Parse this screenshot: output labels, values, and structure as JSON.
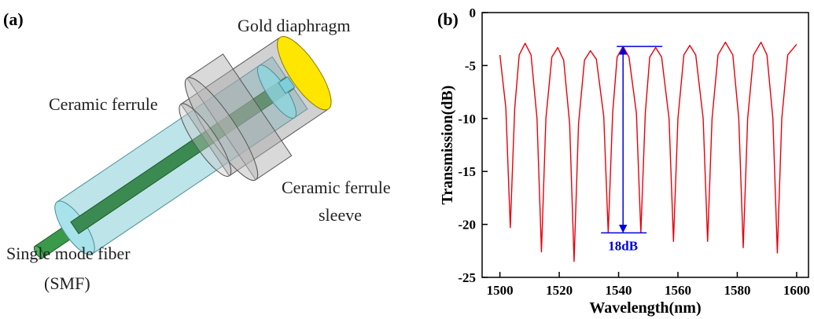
{
  "diagram": {
    "panel_label": "(a)",
    "labels": {
      "diaphragm": "Gold diaphragm",
      "ferrule": "Ceramic ferrule",
      "sleeve": [
        "Ceramic ferrule",
        "sleeve"
      ],
      "fiber": [
        "Single mode fiber",
        "(SMF)"
      ]
    }
  },
  "chart_data": {
    "type": "line",
    "panel_label": "(b)",
    "x_label": "Wavelength(nm)",
    "y_label": "Transmission(dB)",
    "x": [
      1500,
      1502,
      1503.5,
      1505,
      1506.5,
      1508.5,
      1510.5,
      1512.5,
      1514,
      1515.5,
      1517.5,
      1519.5,
      1521.5,
      1523.5,
      1525,
      1526.5,
      1528.5,
      1530.5,
      1532.5,
      1535,
      1536.5,
      1538,
      1539.5,
      1541.5,
      1543.5,
      1546,
      1547.5,
      1549,
      1550.5,
      1552.5,
      1554.5,
      1557,
      1558.5,
      1560,
      1562,
      1564,
      1566,
      1568.5,
      1570,
      1571.5,
      1573.5,
      1576,
      1578.5,
      1580.5,
      1582,
      1583.5,
      1585.5,
      1588,
      1590,
      1592,
      1593.5,
      1595,
      1597,
      1600
    ],
    "series": [
      {
        "color": "#e8000b",
        "values": [
          -4.0,
          -9,
          -20.3,
          -9,
          -4,
          -2.9,
          -4,
          -10,
          -22.6,
          -10,
          -4.2,
          -3.3,
          -4.5,
          -10.5,
          -23.5,
          -10.5,
          -4.5,
          -3.6,
          -4.4,
          -9.8,
          -20.8,
          -9.5,
          -4.2,
          -3.2,
          -4.2,
          -9.5,
          -20.8,
          -9.5,
          -4.2,
          -3.3,
          -4.2,
          -10,
          -21.6,
          -10,
          -4,
          -3.1,
          -4,
          -10,
          -21.6,
          -10,
          -4,
          -2.8,
          -4,
          -10,
          -22.2,
          -10,
          -4,
          -2.8,
          -4,
          -10,
          -22.7,
          -10,
          -4,
          -3.0
        ]
      }
    ],
    "annotation": {
      "text": "18dB",
      "color": "#0000e0"
    },
    "xlim": [
      1494,
      1604
    ],
    "ylim": [
      -25,
      0
    ],
    "xticks": [
      1500,
      1520,
      1540,
      1560,
      1580,
      1600
    ],
    "yticks": [
      0,
      -5,
      -10,
      -15,
      -20,
      -25
    ],
    "grid": false
  }
}
